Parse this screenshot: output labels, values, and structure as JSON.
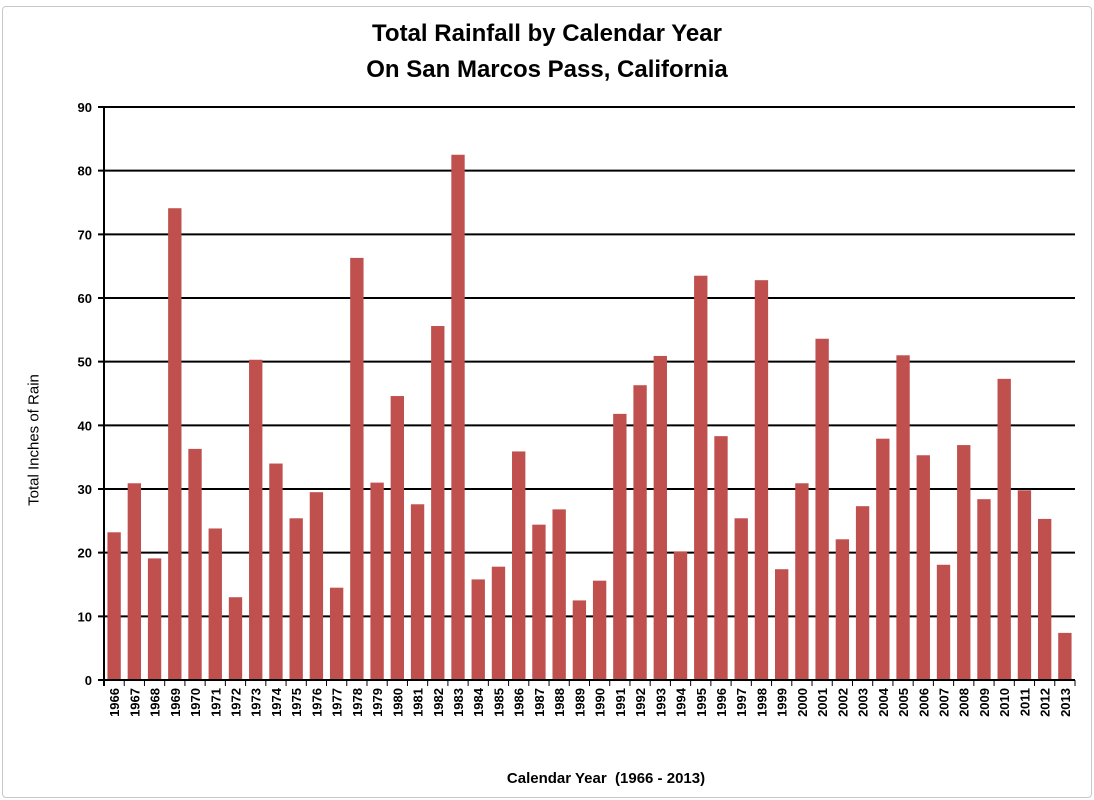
{
  "chart_data": {
    "type": "bar",
    "title": "Total Rainfall by Calendar Year",
    "subtitle": "On San Marcos Pass, California",
    "xlabel": "Calendar Year  (1966 - 2013)",
    "ylabel": "Total Inches of Rain",
    "ylim": [
      0,
      90
    ],
    "yticks": [
      0,
      10,
      20,
      30,
      40,
      50,
      60,
      70,
      80,
      90
    ],
    "grid": true,
    "bar_color": "#c0504d",
    "categories": [
      "1966",
      "1967",
      "1968",
      "1969",
      "1970",
      "1971",
      "1972",
      "1973",
      "1974",
      "1975",
      "1976",
      "1977",
      "1978",
      "1979",
      "1980",
      "1981",
      "1982",
      "1983",
      "1984",
      "1985",
      "1986",
      "1987",
      "1988",
      "1989",
      "1990",
      "1991",
      "1992",
      "1993",
      "1994",
      "1995",
      "1996",
      "1997",
      "1998",
      "1999",
      "2000",
      "2001",
      "2002",
      "2003",
      "2004",
      "2005",
      "2006",
      "2007",
      "2008",
      "2009",
      "2010",
      "2011",
      "2012",
      "2013"
    ],
    "values": [
      23.2,
      30.9,
      19.1,
      74.1,
      36.3,
      23.8,
      13.0,
      50.3,
      34.0,
      25.4,
      29.5,
      14.5,
      66.3,
      31.0,
      44.6,
      27.6,
      55.6,
      82.5,
      15.8,
      17.8,
      35.9,
      24.4,
      26.8,
      12.5,
      15.6,
      41.8,
      46.3,
      50.9,
      20.2,
      63.5,
      38.3,
      25.4,
      62.8,
      17.4,
      30.9,
      53.6,
      22.1,
      27.3,
      37.9,
      51.0,
      35.3,
      18.1,
      36.9,
      28.4,
      47.3,
      29.8,
      25.3,
      7.4
    ]
  }
}
